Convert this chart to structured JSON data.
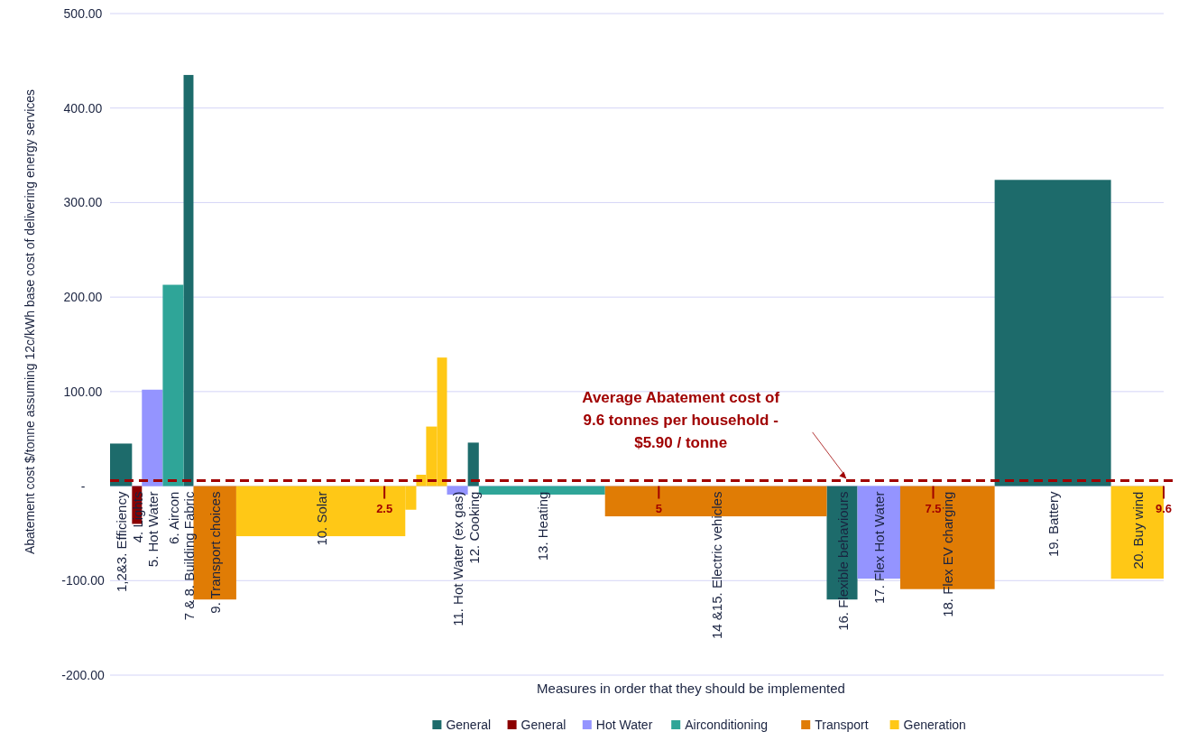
{
  "chart_data": {
    "type": "histogram",
    "xlabel": "Measures in order that they should be implemented",
    "ylabel": "Abatement cost $/tonne assuming 12c/kWh base cost of delivering energy services",
    "bins": [
      0,
      0.2,
      0.29,
      0.48,
      0.67,
      0.76,
      1.15,
      2.69,
      2.79,
      2.88,
      2.98,
      3.07,
      3.26,
      3.36,
      4.51,
      6.53,
      6.81,
      7.2,
      8.06,
      9.12,
      9.6
    ],
    "series": [
      {
        "name": "General",
        "color": "#1d6b6b",
        "values": [
          45,
          null,
          null,
          null,
          435,
          null,
          null,
          null,
          null,
          null,
          null,
          null,
          46,
          null,
          null,
          -120,
          null,
          null,
          324,
          null
        ]
      },
      {
        "name": "General",
        "color": "#8b0000",
        "values": [
          null,
          -40,
          null,
          null,
          null,
          null,
          null,
          null,
          null,
          null,
          null,
          null,
          null,
          null,
          null,
          null,
          null,
          null,
          null,
          null
        ]
      },
      {
        "name": "Hot Water",
        "color": "#9494ff",
        "values": [
          null,
          null,
          102,
          null,
          null,
          null,
          null,
          null,
          null,
          null,
          null,
          -9,
          null,
          null,
          null,
          null,
          -98,
          null,
          null,
          null
        ]
      },
      {
        "name": "Airconditioning",
        "color": "#2fa598",
        "values": [
          null,
          null,
          null,
          213,
          null,
          null,
          null,
          null,
          null,
          null,
          null,
          null,
          null,
          -9,
          null,
          null,
          null,
          null,
          null,
          null
        ]
      },
      {
        "name": "Transport",
        "color": "#e07c05",
        "values": [
          null,
          null,
          null,
          null,
          null,
          -120,
          null,
          null,
          null,
          null,
          null,
          null,
          null,
          null,
          -32,
          null,
          null,
          -109,
          null,
          null
        ]
      },
      {
        "name": "Generation",
        "color": "#ffc816",
        "values": [
          null,
          null,
          null,
          null,
          null,
          null,
          -53,
          -25,
          12,
          63,
          136,
          null,
          null,
          null,
          null,
          null,
          null,
          null,
          null,
          -98
        ]
      }
    ],
    "xlim": [
      0,
      9.6
    ],
    "xticks": [
      2.5,
      5,
      7.5,
      9.6
    ],
    "ylim": [
      -200,
      500
    ],
    "yticks": [
      {
        "value": -200,
        "label": "-200.00"
      },
      {
        "value": -100,
        "label": "-100.00"
      },
      {
        "value": 0,
        "label": "-"
      },
      {
        "value": 100,
        "label": "100.00"
      },
      {
        "value": 200,
        "label": "200.00"
      },
      {
        "value": 300,
        "label": "300.00"
      },
      {
        "value": 400,
        "label": "400.00"
      },
      {
        "value": 500,
        "label": "500.00"
      }
    ],
    "grid": "y",
    "legend": "bottom",
    "ref_lines": [
      {
        "axis": "y",
        "value": 5.9,
        "label": "Average Abatement cost of 9.6 tonnes per household - $5.90 / tonne",
        "color": "#a00000",
        "line_style": "dashed"
      }
    ],
    "annotations": [
      {
        "text": "1,2&3. Efficiency",
        "x": 0.1,
        "y": 0
      },
      {
        "text": "4. Lights",
        "x": 0.245,
        "y": 0
      },
      {
        "text": "5. Hot Water",
        "x": 0.385,
        "y": 0
      },
      {
        "text": "6. Aircon",
        "x": 0.575,
        "y": 0
      },
      {
        "text": "7 & 8. Building Fabric",
        "x": 0.715,
        "y": 0
      },
      {
        "text": "9. Transport choices",
        "x": 0.955,
        "y": 0
      },
      {
        "text": "10. Solar",
        "x": 1.92,
        "y": 0
      },
      {
        "text": "11. Hot Water (ex gas)",
        "x": 3.165,
        "y": 0
      },
      {
        "text": "12. Cooking",
        "x": 3.31,
        "y": 0
      },
      {
        "text": "13. Heating",
        "x": 3.935,
        "y": 0
      },
      {
        "text": "14 &15. Electric vehicles",
        "x": 5.52,
        "y": 0
      },
      {
        "text": "16. Flexible behaviours",
        "x": 6.67,
        "y": 0
      },
      {
        "text": "17. Flex Hot Water",
        "x": 7.005,
        "y": 0
      },
      {
        "text": "18. Flex EV charging",
        "x": 7.63,
        "y": 0
      },
      {
        "text": "19. Battery",
        "x": 8.59,
        "y": 0
      },
      {
        "text": "20. Buy wind",
        "x": 9.36,
        "y": 0
      }
    ]
  }
}
